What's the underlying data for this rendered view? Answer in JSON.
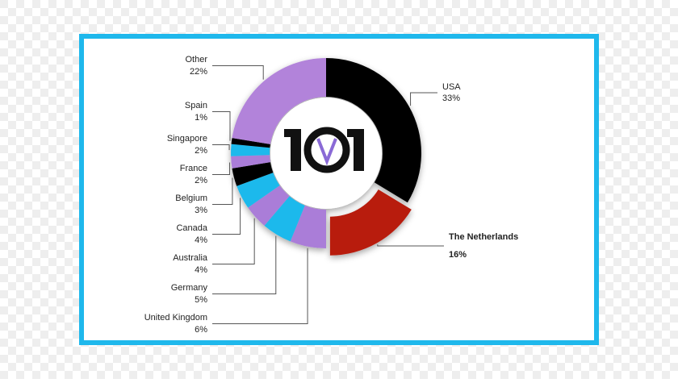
{
  "chart_data": {
    "type": "donut",
    "categories": [
      "USA",
      "The Netherlands",
      "United Kingdom",
      "Germany",
      "Australia",
      "Canada",
      "Belgium",
      "France",
      "Singapore",
      "Spain",
      "Other"
    ],
    "values": [
      33,
      16,
      6,
      5,
      4,
      4,
      3,
      2,
      2,
      1,
      22
    ],
    "value_labels": [
      "33%",
      "16%",
      "6%",
      "5%",
      "4%",
      "4%",
      "3%",
      "2%",
      "2%",
      "1%",
      "22%"
    ],
    "colors": [
      "#000000",
      "#b81d0e",
      "#aa7dd8",
      "#1cb9ec",
      "#aa7dd8",
      "#1cb9ec",
      "#000000",
      "#aa7dd8",
      "#1cb9ec",
      "#000000",
      "#b283da"
    ],
    "highlight": "The Netherlands"
  }
}
